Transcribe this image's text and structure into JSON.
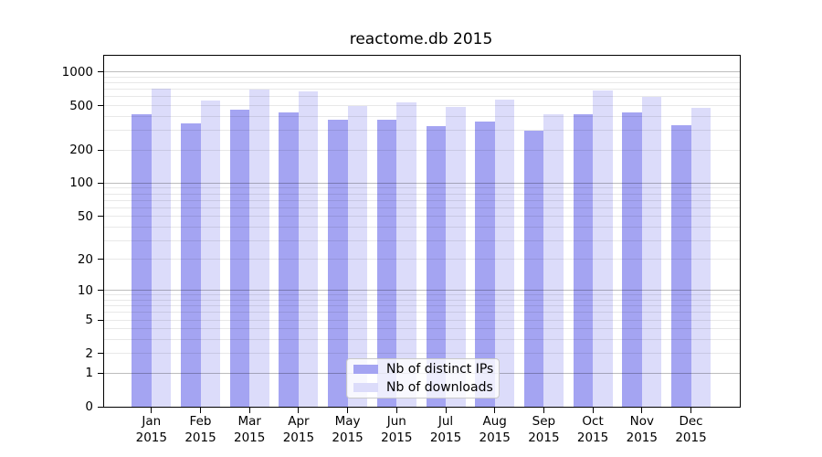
{
  "title": "reactome.db 2015",
  "chart_data": {
    "type": "bar",
    "title": "reactome.db 2015",
    "y_scale": "log1p",
    "categories": [
      "Jan",
      "Feb",
      "Mar",
      "Apr",
      "May",
      "Jun",
      "Jul",
      "Aug",
      "Sep",
      "Oct",
      "Nov",
      "Dec"
    ],
    "year_label": "2015",
    "series": [
      {
        "name": "Nb of distinct IPs",
        "color": "#a4a4f2",
        "values": [
          420,
          347,
          458,
          438,
          375,
          372,
          328,
          360,
          297,
          422,
          438,
          336
        ]
      },
      {
        "name": "Nb of downloads",
        "color": "#dcdcfa",
        "values": [
          710,
          560,
          700,
          672,
          500,
          538,
          487,
          570,
          420,
          690,
          605,
          478
        ]
      }
    ],
    "y_ticks": [
      0,
      1,
      2,
      5,
      10,
      20,
      50,
      100,
      200,
      500,
      1000
    ],
    "ylim": [
      0,
      1430
    ],
    "grid": true,
    "legend_position": "bottom-center"
  },
  "colors": {
    "bar_distinct_ips": "#a4a4f2",
    "bar_downloads": "#dcdcfa",
    "grid_major": "#bdbdbd",
    "grid_minor": "#e8e8e8",
    "axis": "#000000",
    "legend_border": "#c8c8c8"
  }
}
